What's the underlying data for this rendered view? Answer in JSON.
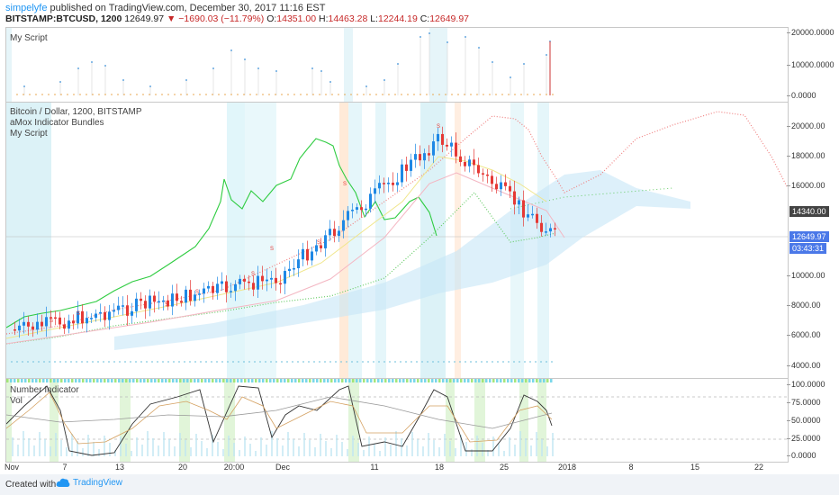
{
  "header": {
    "username": "simpelyfe",
    "published": "published on TradingView.com, December 30, 2017 11:16 EST",
    "symbol": "BITSTAMP:BTCUSD, 1200",
    "last": "12649.97",
    "change": "−1690.03 (−11.79%)",
    "open_label": "O:",
    "open": "14351.00",
    "high_label": "H:",
    "high": "14463.28",
    "low_label": "L:",
    "low": "12244.19",
    "close_label": "C:",
    "close": "12649.97"
  },
  "top_pane": {
    "title": "My Script",
    "ticks": [
      "20000.0000",
      "10000.0000",
      "0.0000"
    ]
  },
  "main_pane": {
    "legend": [
      "Bitcoin / Dollar, 1200, BITSTAMP",
      "aMox Indicator Bundles",
      "My Script"
    ],
    "ticks": [
      "20000.00",
      "18000.00",
      "16000.00",
      "10000.00",
      "8000.00",
      "6000.00",
      "4000.00"
    ],
    "price_tag_dark": "14340.00",
    "price_tag_blue": "12649.97",
    "countdown": "03:43:31",
    "signal_letter": "S"
  },
  "bottom_pane": {
    "legend": [
      "Number Indicator",
      "Vol"
    ],
    "ticks": [
      "100.0000",
      "75.0000",
      "50.0000",
      "25.0000",
      "0.0000"
    ]
  },
  "x_axis": [
    "Nov",
    "7",
    "13",
    "20",
    "20:00",
    "Dec",
    "11",
    "18",
    "25",
    "2018",
    "8",
    "15",
    "22"
  ],
  "footer": {
    "created_with": "Created with",
    "brand": "TradingView"
  },
  "colors": {
    "up": "#1e88e5",
    "down": "#e53935",
    "green_line": "#2ecc40",
    "accent": "#2196f3"
  }
}
